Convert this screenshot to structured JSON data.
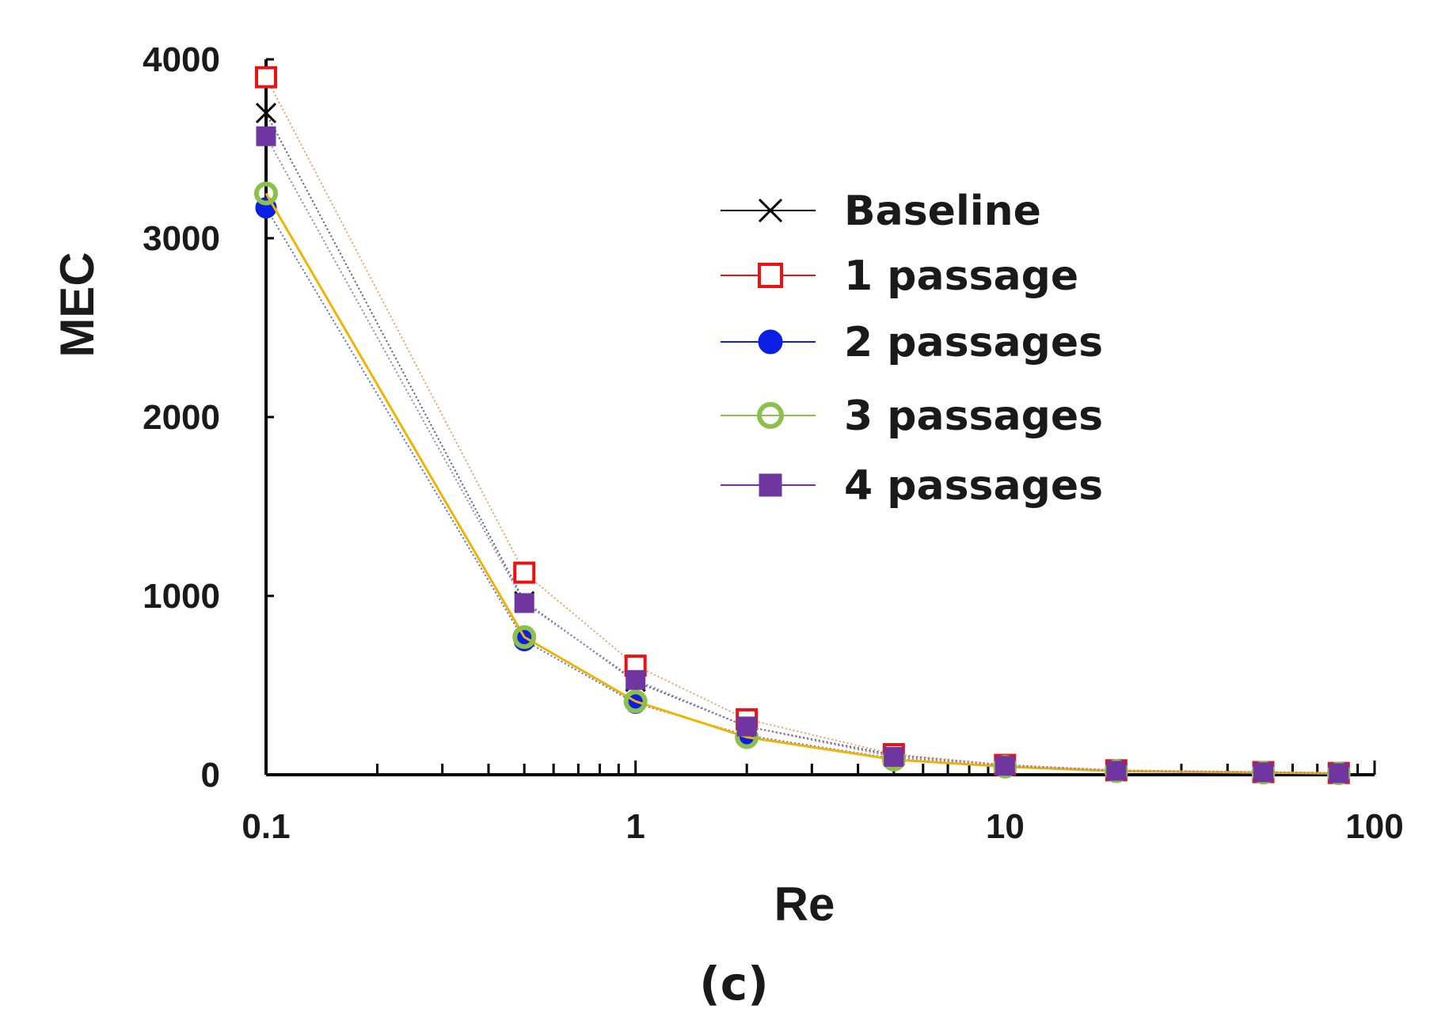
{
  "chart_data": {
    "type": "line",
    "xscale": "log",
    "xlabel": "Re",
    "ylabel": "MEC",
    "caption": "(c)",
    "xlim": [
      0.1,
      100
    ],
    "ylim": [
      0,
      4000
    ],
    "xticks": [
      "0.1",
      "1",
      "10",
      "100"
    ],
    "yticks": [
      "0",
      "1000",
      "2000",
      "3000",
      "4000"
    ],
    "x": [
      0.1,
      0.5,
      1,
      2,
      5,
      10,
      20,
      50,
      80
    ],
    "series": [
      {
        "name": "Baseline",
        "marker": "x",
        "color": "#000000",
        "linecolor": "#5a5a78",
        "values": [
          3700,
          970,
          520,
          270,
          110,
          55,
          25,
          15,
          10
        ]
      },
      {
        "name": "1 passage",
        "marker": "square-open",
        "color": "#ee1111",
        "linecolor": "#f0a060",
        "values": [
          3900,
          1130,
          610,
          310,
          115,
          55,
          25,
          15,
          10
        ]
      },
      {
        "name": "2 passages",
        "marker": "circle-filled",
        "color": "#0a1ee6",
        "linecolor": "#5a6ed2",
        "values": [
          3170,
          750,
          400,
          220,
          90,
          45,
          20,
          12,
          8
        ]
      },
      {
        "name": "3 passages",
        "marker": "circle-open",
        "color": "#8dc04a",
        "linecolor": "#f0b400",
        "values": [
          3250,
          770,
          410,
          210,
          85,
          45,
          20,
          12,
          8
        ]
      },
      {
        "name": "4 passages",
        "marker": "square-filled",
        "color": "#6f35a0",
        "linecolor": "#9a80c8",
        "values": [
          3570,
          960,
          530,
          270,
          100,
          50,
          22,
          14,
          9
        ]
      }
    ],
    "legend_position": "upper-right-inside"
  }
}
